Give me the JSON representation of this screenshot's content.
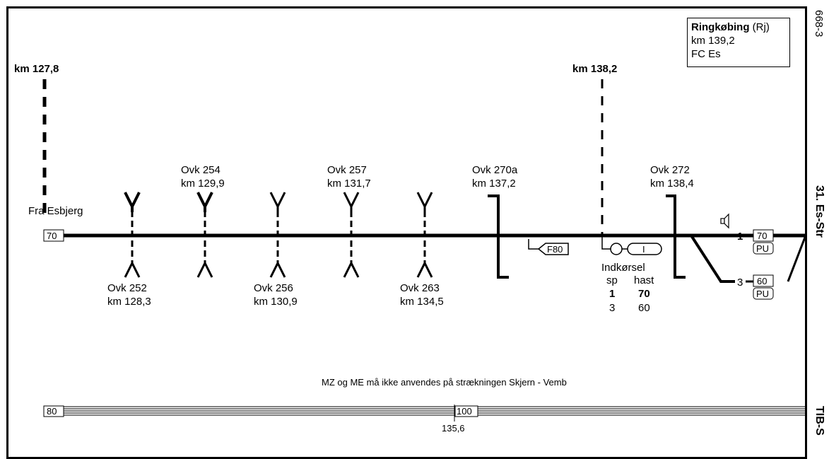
{
  "station": {
    "name": "Ringkøbing",
    "code": "(Rj)",
    "km": "km 139,2",
    "fc": "FC Es"
  },
  "side_labels": {
    "top": "668-3",
    "middle": "31. Es-Str",
    "bottom": "TIB-S"
  },
  "km_markers": [
    {
      "label": "km 127,8"
    },
    {
      "label": "km 138,2"
    }
  ],
  "origin_label": "Fra Esbjerg",
  "speed_start": "70",
  "crossings_up": [
    {
      "name": "Ovk 254",
      "km": "km 129,9"
    },
    {
      "name": "Ovk 257",
      "km": "km 131,7"
    },
    {
      "name": "Ovk 270a",
      "km": "km 137,2"
    },
    {
      "name": "Ovk 272",
      "km": "km 138,4"
    }
  ],
  "crossings_down": [
    {
      "name": "Ovk 252",
      "km": "km 128,3"
    },
    {
      "name": "Ovk 256",
      "km": "km 130,9"
    },
    {
      "name": "Ovk 263",
      "km": "km 134,5"
    }
  ],
  "signal_f80": "F80",
  "signal_entry": "I",
  "entry": {
    "title": "Indkørsel",
    "col_sp": "sp",
    "col_hast": "hast",
    "rows": [
      {
        "sp": "1",
        "hast": "70"
      },
      {
        "sp": "3",
        "hast": "60"
      }
    ]
  },
  "tracks": [
    {
      "num": "1",
      "speed": "70",
      "badge": "PU"
    },
    {
      "num": "3",
      "speed": "60",
      "badge": "PU"
    }
  ],
  "note": "MZ og ME må ikke anvendes på strækningen Skjern - Vemb",
  "gradient": {
    "start_value": "80",
    "mid_value": "100",
    "mid_km": "135,6"
  }
}
